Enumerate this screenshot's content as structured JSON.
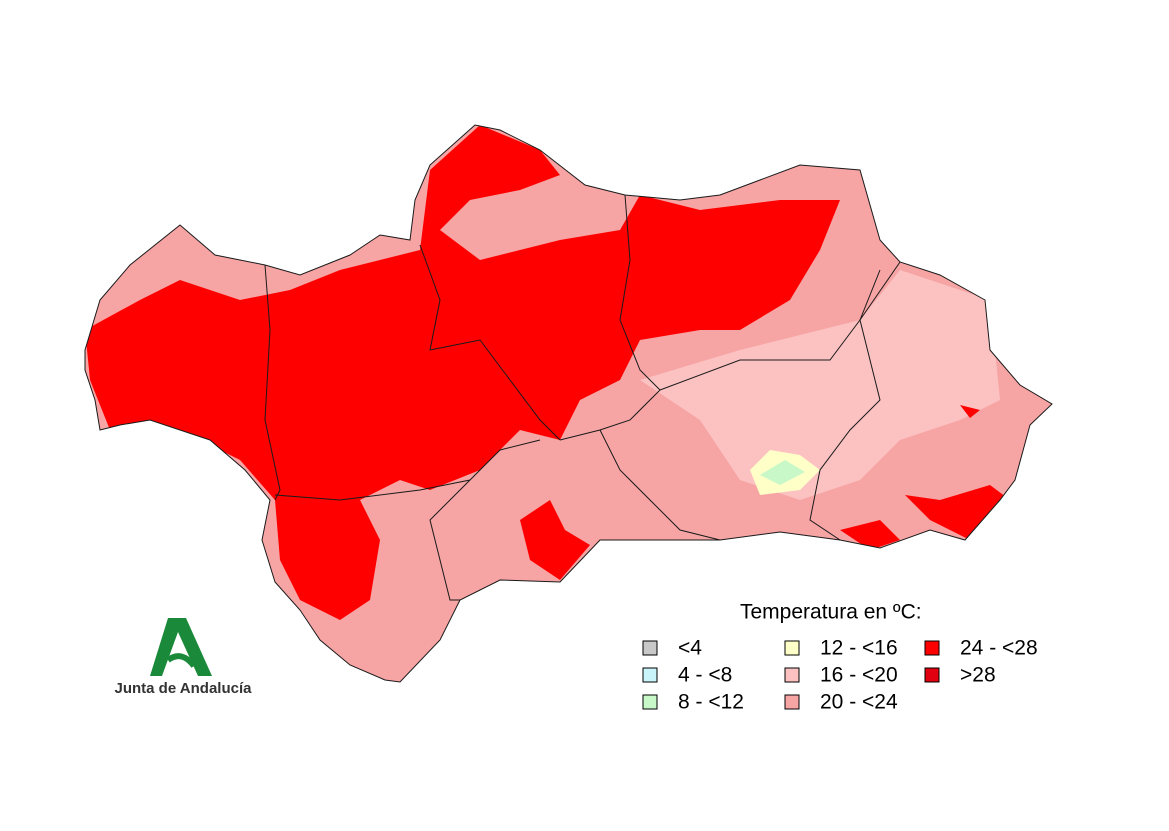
{
  "legend": {
    "title": "Temperatura en ºC:",
    "items": [
      {
        "label": "<4",
        "color": "#c8c8c8"
      },
      {
        "label": "4 - <8",
        "color": "#c8f4fa"
      },
      {
        "label": "8 - <12",
        "color": "#c8f8c8"
      },
      {
        "label": "12 - <16",
        "color": "#ffffc8"
      },
      {
        "label": "16 - <20",
        "color": "#fcc2c2"
      },
      {
        "label": "20 - <24",
        "color": "#f7a4a4"
      },
      {
        "label": "24 - <28",
        "color": "#ff0000"
      },
      {
        "label": ">28",
        "color": "#e0000f"
      }
    ]
  },
  "logo": {
    "text": "Junta de Andalucía"
  }
}
